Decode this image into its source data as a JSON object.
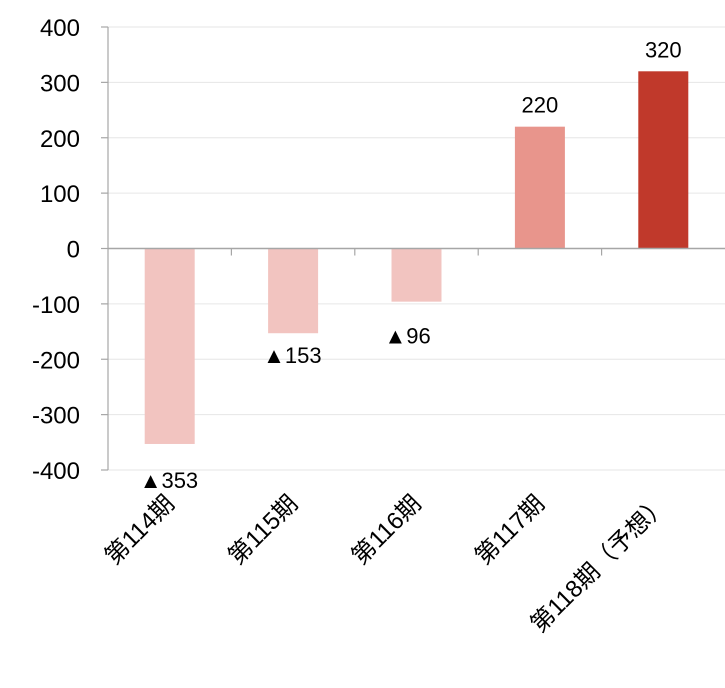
{
  "chart_data": {
    "type": "bar",
    "categories": [
      "第114期",
      "第115期",
      "第116期",
      "第117期",
      "第118期（予想）"
    ],
    "values": [
      -353,
      -153,
      -96,
      220,
      320
    ],
    "data_labels": [
      "▲353",
      "▲153",
      "▲96",
      "220",
      "320"
    ],
    "bar_colors": [
      "#f2c4c0",
      "#f2c4c0",
      "#f2c4c0",
      "#e8958c",
      "#c0392b"
    ],
    "ylim": [
      -400,
      400
    ],
    "yticks": [
      "400",
      "300",
      "200",
      "100",
      "0",
      "-100",
      "-200",
      "-300",
      "-400"
    ],
    "title": "",
    "xlabel": "",
    "ylabel": "",
    "grid": true,
    "legend": "none",
    "grid_color": "#e6e6e6",
    "axis_color": "#a6a6a6"
  }
}
